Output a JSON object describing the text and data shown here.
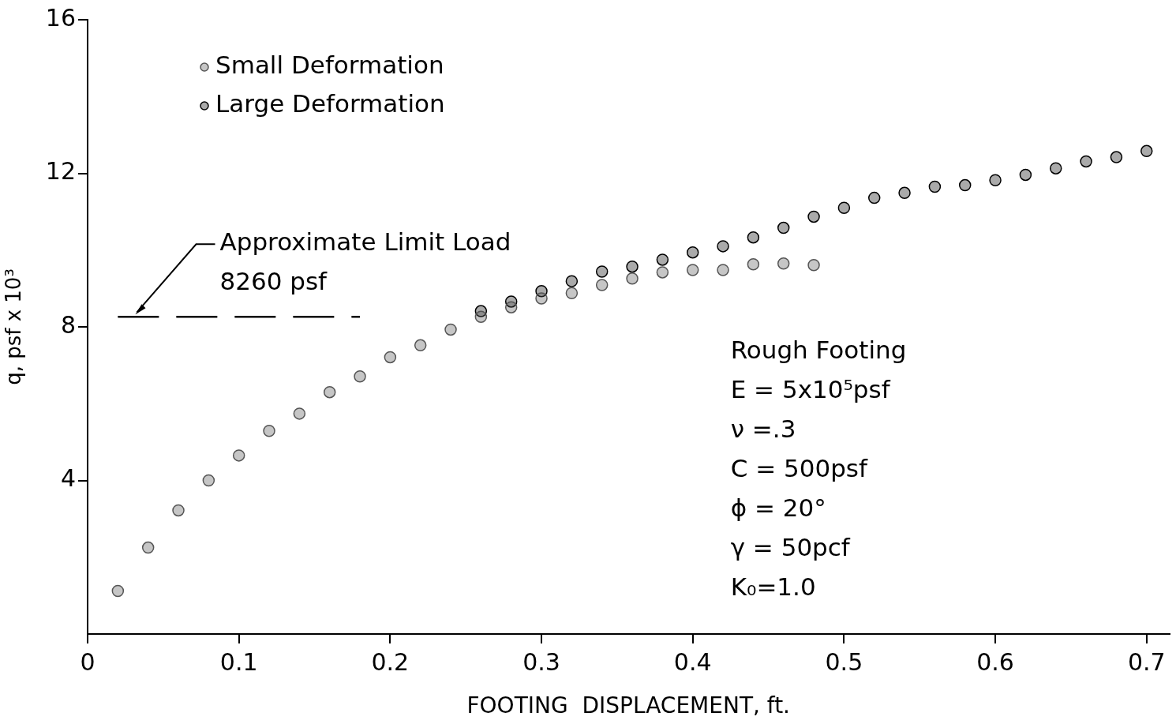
{
  "chart_data": {
    "type": "scatter",
    "xlabel": "FOOTING  DISPLACEMENT, ft.",
    "ylabel": "q, psf x 10³",
    "xlim": [
      0,
      0.715
    ],
    "ylim": [
      0,
      16
    ],
    "xticks": [
      0,
      0.1,
      0.2,
      0.3,
      0.4,
      0.5,
      0.6,
      0.7
    ],
    "yticks": [
      4,
      8,
      12,
      16
    ],
    "grid": false,
    "legend": "top left",
    "marker": "circle",
    "series": [
      {
        "name": "Small Deformation",
        "color": "#555555",
        "x": [
          0.02,
          0.04,
          0.06,
          0.08,
          0.1,
          0.12,
          0.14,
          0.16,
          0.18,
          0.2,
          0.22,
          0.24,
          0.26,
          0.28,
          0.3,
          0.32,
          0.34,
          0.36,
          0.38,
          0.4,
          0.42,
          0.44,
          0.46,
          0.48
        ],
        "values": [
          1.12,
          2.25,
          3.22,
          4.0,
          4.65,
          5.29,
          5.74,
          6.3,
          6.71,
          7.21,
          7.52,
          7.93,
          8.26,
          8.51,
          8.74,
          8.88,
          9.09,
          9.26,
          9.42,
          9.48,
          9.48,
          9.63,
          9.65,
          9.61
        ]
      },
      {
        "name": "Large Deformation",
        "color": "#000000",
        "x": [
          0.26,
          0.28,
          0.3,
          0.32,
          0.34,
          0.36,
          0.38,
          0.4,
          0.42,
          0.44,
          0.46,
          0.48,
          0.5,
          0.52,
          0.54,
          0.56,
          0.58,
          0.6,
          0.62,
          0.64,
          0.66,
          0.68,
          0.7
        ],
        "values": [
          8.41,
          8.66,
          8.93,
          9.19,
          9.44,
          9.57,
          9.75,
          9.94,
          10.1,
          10.33,
          10.58,
          10.87,
          11.1,
          11.36,
          11.49,
          11.65,
          11.69,
          11.82,
          11.96,
          12.13,
          12.31,
          12.42,
          12.58
        ]
      },
      {
        "type": "line",
        "color": "#000000",
        "line_style": "dashed",
        "marker": "none",
        "x": [
          0.02,
          0.18
        ],
        "values": [
          8.26,
          8.26
        ]
      }
    ],
    "annotations": [
      {
        "text": "Approximate Limit Load",
        "x": 0.03,
        "y": 8.26
      },
      "8260 psf",
      "Rough Footing",
      "E = 5x10⁵psf",
      "ν =.3",
      "C = 500psf",
      "ϕ = 20°",
      "γ = 50pcf",
      "K₀=1.0"
    ]
  }
}
